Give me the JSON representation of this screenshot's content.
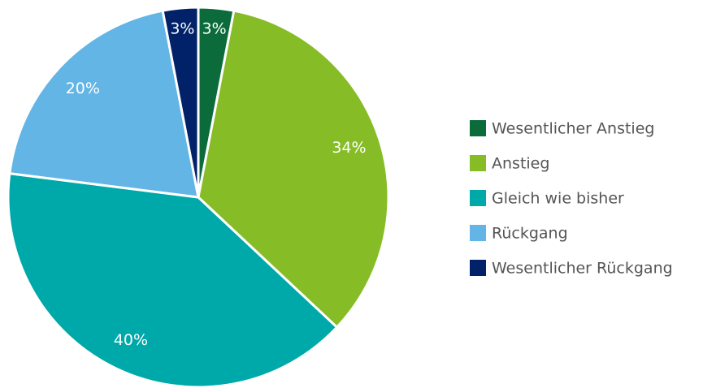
{
  "chart_data": {
    "type": "pie",
    "categories": [
      "Wesentlicher Anstieg",
      "Anstieg",
      "Gleich wie bisher",
      "Rückgang",
      "Wesentlicher Rückgang"
    ],
    "values": [
      3,
      34,
      40,
      20,
      3
    ],
    "value_labels": [
      "3%",
      "34%",
      "40%",
      "20%",
      "3%"
    ],
    "colors": [
      "#0b6b3a",
      "#86bc25",
      "#00a9a9",
      "#62b5e5",
      "#012169"
    ],
    "legend": "right"
  }
}
